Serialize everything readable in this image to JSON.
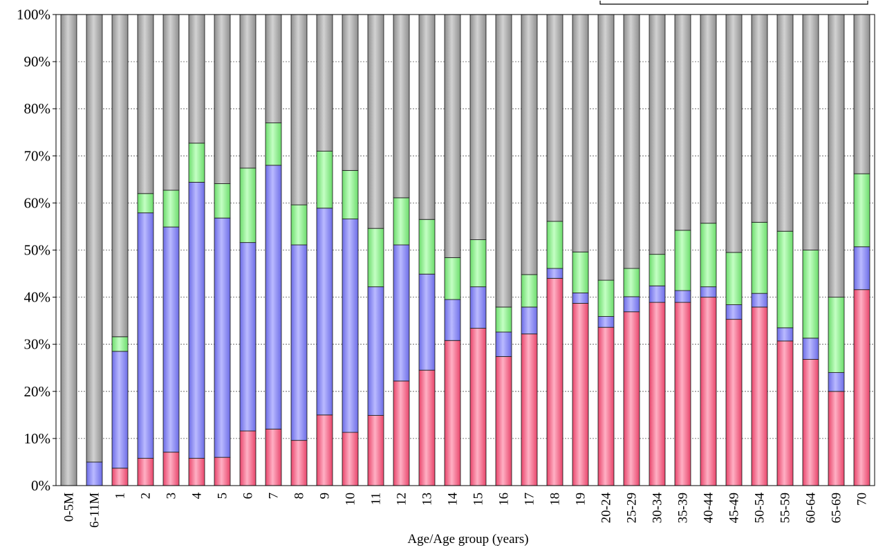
{
  "chart_data": {
    "type": "bar",
    "stacked": true,
    "percent_stacked": true,
    "title": "",
    "xlabel": "Age/Age group (years)",
    "ylabel": "",
    "ylim": [
      0,
      100
    ],
    "y_tick_labels": [
      "0%",
      "10%",
      "20%",
      "30%",
      "40%",
      "50%",
      "60%",
      "70%",
      "80%",
      "90%",
      "100%"
    ],
    "grid": "horizontal dashed",
    "legend": "partially cut off at top-right",
    "categories": [
      "0-5M",
      "6-11M",
      "1",
      "2",
      "3",
      "4",
      "5",
      "6",
      "7",
      "8",
      "9",
      "10",
      "11",
      "12",
      "13",
      "14",
      "15",
      "16",
      "17",
      "18",
      "19",
      "20-24",
      "25-29",
      "30-34",
      "35-39",
      "40-44",
      "45-49",
      "50-54",
      "55-59",
      "60-64",
      "65-69",
      "70"
    ],
    "series": [
      {
        "color": "#f06c8c",
        "values": [
          0,
          0,
          3.7,
          5.8,
          7.1,
          5.8,
          6.0,
          11.6,
          12.0,
          9.6,
          15.0,
          11.3,
          14.9,
          22.2,
          24.5,
          30.8,
          33.4,
          27.4,
          32.2,
          44.0,
          38.7,
          33.6,
          36.9,
          38.9,
          38.9,
          40.0,
          35.3,
          37.9,
          30.7,
          26.8,
          20.0,
          41.6
        ]
      },
      {
        "color": "#8e8ef4",
        "values": [
          0,
          5.0,
          24.8,
          52.1,
          47.8,
          58.6,
          50.8,
          40.0,
          56.0,
          41.5,
          43.9,
          45.3,
          27.3,
          28.9,
          20.4,
          8.7,
          8.8,
          5.2,
          5.7,
          2.1,
          2.2,
          2.3,
          3.2,
          3.5,
          2.5,
          2.2,
          3.1,
          2.9,
          2.8,
          4.5,
          4.0,
          9.1
        ]
      },
      {
        "color": "#8ef08e",
        "values": [
          0,
          0,
          3.1,
          4.1,
          7.8,
          8.3,
          7.3,
          15.8,
          9.0,
          8.5,
          12.1,
          10.3,
          12.4,
          10.0,
          11.6,
          8.9,
          10.0,
          5.3,
          6.9,
          10.0,
          8.7,
          7.7,
          6.0,
          6.7,
          12.8,
          13.5,
          11.1,
          15.1,
          20.5,
          18.7,
          16.0,
          15.5
        ]
      },
      {
        "color": "#a8a8a8",
        "values": [
          100,
          95.0,
          68.4,
          38.0,
          37.3,
          27.3,
          35.9,
          32.6,
          23.0,
          40.4,
          29.0,
          33.1,
          45.4,
          38.9,
          43.5,
          51.6,
          47.8,
          62.1,
          55.2,
          43.9,
          50.4,
          56.4,
          53.9,
          50.9,
          45.8,
          44.3,
          50.5,
          44.1,
          46.0,
          50.0,
          60.0,
          33.8
        ]
      }
    ]
  }
}
